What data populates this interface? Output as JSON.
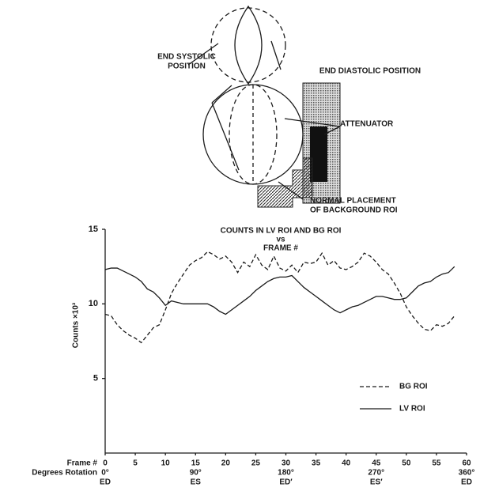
{
  "diagram": {
    "labels": [
      {
        "lines": [
          "END SYSTOLIC",
          "POSITION"
        ]
      },
      {
        "lines": [
          "END DIASTOLIC POSITION"
        ]
      },
      {
        "lines": [
          "ATTENUATOR"
        ]
      },
      {
        "lines": [
          "NORMAL PLACEMENT",
          "OF BACKGROUND ROI"
        ]
      }
    ]
  },
  "chart_data": {
    "type": "line",
    "title_lines": [
      "COUNTS IN LV  ROI AND BG ROI",
      "vs",
      "FRAME #"
    ],
    "ylabel": "Counts ×10³",
    "xlabel": "Frame #",
    "x2label": "Degrees Rotation",
    "xlim": [
      0,
      60
    ],
    "xticks": [
      0,
      5,
      10,
      15,
      20,
      25,
      30,
      35,
      40,
      45,
      50,
      55,
      60
    ],
    "ylim": [
      0,
      15
    ],
    "yticks": [
      5,
      10,
      15
    ],
    "degree_ticks": [
      {
        "value": 0,
        "label": "0°"
      },
      {
        "value": 15,
        "label": "90°"
      },
      {
        "value": 30,
        "label": "180°"
      },
      {
        "value": 45,
        "label": "270°"
      },
      {
        "value": 60,
        "label": "360°"
      }
    ],
    "phase_labels": [
      "ED",
      "ES",
      "ED′",
      "ES′",
      "ED"
    ],
    "legend": "lower right",
    "x": [
      0,
      1,
      2,
      3,
      4,
      5,
      6,
      7,
      8,
      9,
      10,
      11,
      12,
      13,
      14,
      15,
      16,
      17,
      18,
      19,
      20,
      21,
      22,
      23,
      24,
      25,
      26,
      27,
      28,
      29,
      30,
      31,
      32,
      33,
      34,
      35,
      36,
      37,
      38,
      39,
      40,
      41,
      42,
      43,
      44,
      45,
      46,
      47,
      48,
      49,
      50,
      51,
      52,
      53,
      54,
      55,
      56,
      57,
      58
    ],
    "series": [
      {
        "name": "BG ROI",
        "color": "#1a1a1a",
        "dashed": true,
        "values": [
          9.3,
          9.2,
          8.6,
          8.2,
          7.9,
          7.7,
          7.4,
          7.9,
          8.4,
          8.6,
          9.6,
          10.7,
          11.4,
          12.0,
          12.6,
          12.9,
          13.1,
          13.5,
          13.3,
          13.0,
          13.2,
          12.8,
          12.1,
          12.8,
          12.5,
          13.3,
          12.6,
          12.3,
          13.2,
          12.4,
          12.2,
          12.6,
          12.1,
          12.8,
          12.7,
          12.8,
          13.4,
          12.6,
          12.9,
          12.4,
          12.3,
          12.5,
          12.8,
          13.4,
          13.2,
          12.8,
          12.3,
          12.0,
          11.4,
          10.7,
          9.8,
          9.2,
          8.7,
          8.3,
          8.2,
          8.6,
          8.5,
          8.7,
          9.2
        ]
      },
      {
        "name": "LV ROI",
        "color": "#1a1a1a",
        "dashed": false,
        "values": [
          12.3,
          12.4,
          12.4,
          12.2,
          12.0,
          11.8,
          11.5,
          11.0,
          10.8,
          10.4,
          9.9,
          10.2,
          10.1,
          10.0,
          10.0,
          10.0,
          10.0,
          10.0,
          9.8,
          9.5,
          9.3,
          9.6,
          9.9,
          10.2,
          10.5,
          10.9,
          11.2,
          11.5,
          11.7,
          11.8,
          11.8,
          11.9,
          11.5,
          11.1,
          10.8,
          10.5,
          10.2,
          9.9,
          9.6,
          9.4,
          9.6,
          9.8,
          9.9,
          10.1,
          10.3,
          10.5,
          10.5,
          10.4,
          10.3,
          10.3,
          10.4,
          10.8,
          11.2,
          11.4,
          11.5,
          11.8,
          12.0,
          12.1,
          12.5
        ]
      }
    ]
  }
}
